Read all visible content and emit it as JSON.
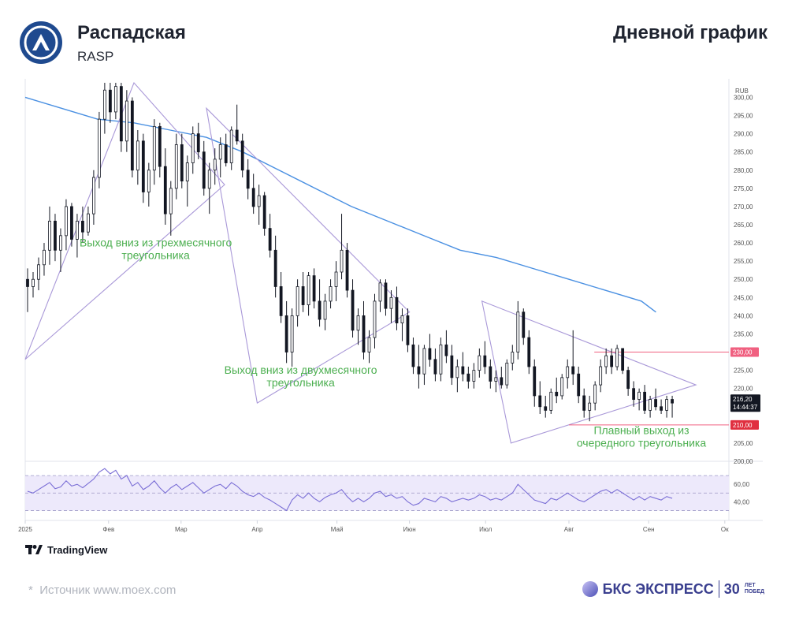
{
  "header": {
    "title": "Распадская",
    "ticker": "RASP",
    "period": "Дневной график"
  },
  "footer": {
    "source": "Источник www.moex.com",
    "source_star": "*",
    "tradingview": "TradingView",
    "brand_main": "БКС ЭКСПРЕСС",
    "brand_30": "30",
    "brand_small_1": "ЛЕТ",
    "brand_small_2": "ПОБЕД"
  },
  "colors": {
    "up": "#ffffff",
    "down": "#131722",
    "ma": "#4a90e2",
    "triangle": "#a998d8",
    "level": "#f06080",
    "annotation": "#4caf50",
    "rsi": "#7b6fd6",
    "rsi_band": "#ede9fb"
  },
  "chart_data": {
    "type": "candlestick",
    "currency": "RUB",
    "ylim": [
      200,
      304
    ],
    "yticks": [
      "300,00",
      "295,00",
      "290,00",
      "285,00",
      "280,00",
      "275,00",
      "270,00",
      "265,00",
      "260,00",
      "255,00",
      "250,00",
      "245,00",
      "240,00",
      "235,00",
      "230,00",
      "225,00",
      "220,00",
      "215,00",
      "210,00",
      "205,00",
      "200,00"
    ],
    "xticks": [
      {
        "label": "2025",
        "day": 0
      },
      {
        "label": "Фев",
        "day": 23
      },
      {
        "label": "Мар",
        "day": 43
      },
      {
        "label": "Апр",
        "day": 64
      },
      {
        "label": "Май",
        "day": 86
      },
      {
        "label": "Июн",
        "day": 106
      },
      {
        "label": "Июл",
        "day": 127
      },
      {
        "label": "Авг",
        "day": 150
      },
      {
        "label": "Сен",
        "day": 172
      },
      {
        "label": "Ок",
        "day": 193
      }
    ],
    "last_price": "216,20",
    "last_time": "14:44:37",
    "levels": [
      {
        "label": "230,00",
        "value": 230
      },
      {
        "label": "210,00",
        "value": 210
      }
    ],
    "ma_points": [
      [
        0,
        300
      ],
      [
        10,
        297
      ],
      [
        20,
        294
      ],
      [
        30,
        293
      ],
      [
        40,
        291
      ],
      [
        50,
        289
      ],
      [
        60,
        285
      ],
      [
        70,
        280
      ],
      [
        80,
        275
      ],
      [
        90,
        270
      ],
      [
        100,
        266
      ],
      [
        110,
        262
      ],
      [
        120,
        258
      ],
      [
        130,
        256
      ],
      [
        140,
        253
      ],
      [
        150,
        250
      ],
      [
        160,
        247
      ],
      [
        170,
        244
      ],
      [
        174,
        241
      ]
    ],
    "triangles": [
      [
        [
          0,
          228
        ],
        [
          55,
          276
        ],
        [
          30,
          304
        ]
      ],
      [
        [
          50,
          297
        ],
        [
          106,
          241
        ],
        [
          64,
          216
        ]
      ],
      [
        [
          126,
          244
        ],
        [
          185,
          221
        ],
        [
          134,
          205
        ]
      ]
    ],
    "annotations": [
      {
        "lines": [
          "Выход вниз из трехмесячного",
          "треугольника"
        ],
        "day": 36,
        "value": 259
      },
      {
        "lines": [
          "Выход вниз из двухмесячного",
          "треугольника"
        ],
        "day": 76,
        "value": 224
      },
      {
        "lines": [
          "Плавный выход из",
          "очередного треугольника"
        ],
        "day": 170,
        "value": 207.5
      }
    ],
    "candles": [
      {
        "o": 250,
        "h": 253,
        "l": 241,
        "c": 248
      },
      {
        "o": 248,
        "h": 252,
        "l": 245,
        "c": 250
      },
      {
        "o": 250,
        "h": 256,
        "l": 247,
        "c": 254
      },
      {
        "o": 254,
        "h": 260,
        "l": 251,
        "c": 258
      },
      {
        "o": 258,
        "h": 270,
        "l": 254,
        "c": 266
      },
      {
        "o": 266,
        "h": 268,
        "l": 255,
        "c": 258
      },
      {
        "o": 258,
        "h": 264,
        "l": 252,
        "c": 262
      },
      {
        "o": 262,
        "h": 272,
        "l": 258,
        "c": 270
      },
      {
        "o": 270,
        "h": 271,
        "l": 259,
        "c": 261
      },
      {
        "o": 261,
        "h": 268,
        "l": 256,
        "c": 266
      },
      {
        "o": 266,
        "h": 270,
        "l": 260,
        "c": 263
      },
      {
        "o": 263,
        "h": 270,
        "l": 262,
        "c": 268
      },
      {
        "o": 268,
        "h": 280,
        "l": 265,
        "c": 278
      },
      {
        "o": 278,
        "h": 296,
        "l": 275,
        "c": 294
      },
      {
        "o": 294,
        "h": 304,
        "l": 290,
        "c": 302
      },
      {
        "o": 302,
        "h": 304,
        "l": 293,
        "c": 296
      },
      {
        "o": 296,
        "h": 304,
        "l": 294,
        "c": 303
      },
      {
        "o": 303,
        "h": 304,
        "l": 285,
        "c": 288
      },
      {
        "o": 288,
        "h": 302,
        "l": 285,
        "c": 299
      },
      {
        "o": 299,
        "h": 300,
        "l": 278,
        "c": 280
      },
      {
        "o": 280,
        "h": 291,
        "l": 276,
        "c": 288
      },
      {
        "o": 288,
        "h": 290,
        "l": 271,
        "c": 274
      },
      {
        "o": 274,
        "h": 282,
        "l": 270,
        "c": 280
      },
      {
        "o": 280,
        "h": 294,
        "l": 276,
        "c": 292
      },
      {
        "o": 292,
        "h": 293,
        "l": 278,
        "c": 281
      },
      {
        "o": 281,
        "h": 286,
        "l": 265,
        "c": 268
      },
      {
        "o": 268,
        "h": 277,
        "l": 262,
        "c": 275
      },
      {
        "o": 275,
        "h": 290,
        "l": 272,
        "c": 287
      },
      {
        "o": 287,
        "h": 290,
        "l": 275,
        "c": 277
      },
      {
        "o": 277,
        "h": 284,
        "l": 270,
        "c": 282
      },
      {
        "o": 282,
        "h": 292,
        "l": 279,
        "c": 290
      },
      {
        "o": 290,
        "h": 293,
        "l": 283,
        "c": 285
      },
      {
        "o": 285,
        "h": 288,
        "l": 273,
        "c": 275
      },
      {
        "o": 275,
        "h": 282,
        "l": 268,
        "c": 280
      },
      {
        "o": 280,
        "h": 286,
        "l": 276,
        "c": 283
      },
      {
        "o": 283,
        "h": 289,
        "l": 278,
        "c": 287
      },
      {
        "o": 287,
        "h": 290,
        "l": 281,
        "c": 282
      },
      {
        "o": 282,
        "h": 292,
        "l": 280,
        "c": 291
      },
      {
        "o": 291,
        "h": 298,
        "l": 287,
        "c": 288
      },
      {
        "o": 288,
        "h": 290,
        "l": 278,
        "c": 280
      },
      {
        "o": 280,
        "h": 283,
        "l": 272,
        "c": 275
      },
      {
        "o": 275,
        "h": 279,
        "l": 268,
        "c": 270
      },
      {
        "o": 270,
        "h": 276,
        "l": 265,
        "c": 273
      },
      {
        "o": 273,
        "h": 274,
        "l": 262,
        "c": 264
      },
      {
        "o": 264,
        "h": 268,
        "l": 256,
        "c": 258
      },
      {
        "o": 258,
        "h": 262,
        "l": 245,
        "c": 248
      },
      {
        "o": 248,
        "h": 252,
        "l": 238,
        "c": 240
      },
      {
        "o": 240,
        "h": 244,
        "l": 227,
        "c": 230
      },
      {
        "o": 230,
        "h": 242,
        "l": 226,
        "c": 240
      },
      {
        "o": 240,
        "h": 250,
        "l": 237,
        "c": 248
      },
      {
        "o": 248,
        "h": 252,
        "l": 241,
        "c": 243
      },
      {
        "o": 243,
        "h": 252,
        "l": 240,
        "c": 251
      },
      {
        "o": 251,
        "h": 253,
        "l": 242,
        "c": 244
      },
      {
        "o": 244,
        "h": 250,
        "l": 237,
        "c": 239
      },
      {
        "o": 239,
        "h": 246,
        "l": 236,
        "c": 244
      },
      {
        "o": 244,
        "h": 250,
        "l": 242,
        "c": 248
      },
      {
        "o": 248,
        "h": 255,
        "l": 244,
        "c": 252
      },
      {
        "o": 252,
        "h": 268,
        "l": 250,
        "c": 258
      },
      {
        "o": 258,
        "h": 260,
        "l": 245,
        "c": 247
      },
      {
        "o": 247,
        "h": 250,
        "l": 234,
        "c": 236
      },
      {
        "o": 236,
        "h": 242,
        "l": 232,
        "c": 240
      },
      {
        "o": 240,
        "h": 244,
        "l": 228,
        "c": 230
      },
      {
        "o": 230,
        "h": 236,
        "l": 227,
        "c": 234
      },
      {
        "o": 234,
        "h": 246,
        "l": 231,
        "c": 244
      },
      {
        "o": 244,
        "h": 250,
        "l": 241,
        "c": 249
      },
      {
        "o": 249,
        "h": 250,
        "l": 240,
        "c": 242
      },
      {
        "o": 242,
        "h": 247,
        "l": 238,
        "c": 245
      },
      {
        "o": 245,
        "h": 248,
        "l": 236,
        "c": 238
      },
      {
        "o": 238,
        "h": 242,
        "l": 233,
        "c": 240
      },
      {
        "o": 240,
        "h": 242,
        "l": 230,
        "c": 232
      },
      {
        "o": 232,
        "h": 234,
        "l": 224,
        "c": 226
      },
      {
        "o": 226,
        "h": 232,
        "l": 220,
        "c": 224
      },
      {
        "o": 224,
        "h": 232,
        "l": 221,
        "c": 231
      },
      {
        "o": 231,
        "h": 235,
        "l": 226,
        "c": 228
      },
      {
        "o": 228,
        "h": 231,
        "l": 222,
        "c": 224
      },
      {
        "o": 224,
        "h": 234,
        "l": 222,
        "c": 232
      },
      {
        "o": 232,
        "h": 236,
        "l": 227,
        "c": 229
      },
      {
        "o": 229,
        "h": 232,
        "l": 221,
        "c": 223
      },
      {
        "o": 223,
        "h": 228,
        "l": 219,
        "c": 226
      },
      {
        "o": 226,
        "h": 230,
        "l": 222,
        "c": 224
      },
      {
        "o": 224,
        "h": 226,
        "l": 220,
        "c": 222
      },
      {
        "o": 222,
        "h": 227,
        "l": 220,
        "c": 225
      },
      {
        "o": 225,
        "h": 231,
        "l": 223,
        "c": 229
      },
      {
        "o": 229,
        "h": 233,
        "l": 224,
        "c": 226
      },
      {
        "o": 226,
        "h": 228,
        "l": 220,
        "c": 222
      },
      {
        "o": 222,
        "h": 225,
        "l": 219,
        "c": 223
      },
      {
        "o": 223,
        "h": 226,
        "l": 220,
        "c": 221
      },
      {
        "o": 221,
        "h": 228,
        "l": 220,
        "c": 227
      },
      {
        "o": 227,
        "h": 232,
        "l": 225,
        "c": 230
      },
      {
        "o": 230,
        "h": 244,
        "l": 228,
        "c": 241
      },
      {
        "o": 241,
        "h": 242,
        "l": 232,
        "c": 234
      },
      {
        "o": 234,
        "h": 236,
        "l": 224,
        "c": 226
      },
      {
        "o": 226,
        "h": 228,
        "l": 215,
        "c": 218
      },
      {
        "o": 218,
        "h": 222,
        "l": 213,
        "c": 215
      },
      {
        "o": 215,
        "h": 218,
        "l": 212,
        "c": 214
      },
      {
        "o": 214,
        "h": 220,
        "l": 213,
        "c": 219
      },
      {
        "o": 219,
        "h": 223,
        "l": 216,
        "c": 218
      },
      {
        "o": 218,
        "h": 224,
        "l": 217,
        "c": 223
      },
      {
        "o": 223,
        "h": 228,
        "l": 220,
        "c": 226
      },
      {
        "o": 226,
        "h": 236,
        "l": 221,
        "c": 224
      },
      {
        "o": 224,
        "h": 226,
        "l": 216,
        "c": 218
      },
      {
        "o": 218,
        "h": 220,
        "l": 212,
        "c": 214
      },
      {
        "o": 214,
        "h": 218,
        "l": 211,
        "c": 216
      },
      {
        "o": 216,
        "h": 222,
        "l": 214,
        "c": 221
      },
      {
        "o": 221,
        "h": 228,
        "l": 219,
        "c": 226
      },
      {
        "o": 226,
        "h": 231,
        "l": 224,
        "c": 229
      },
      {
        "o": 229,
        "h": 231,
        "l": 224,
        "c": 226
      },
      {
        "o": 226,
        "h": 232,
        "l": 225,
        "c": 231
      },
      {
        "o": 231,
        "h": 231,
        "l": 224,
        "c": 225
      },
      {
        "o": 225,
        "h": 226,
        "l": 218,
        "c": 220
      },
      {
        "o": 220,
        "h": 222,
        "l": 215,
        "c": 217
      },
      {
        "o": 217,
        "h": 220,
        "l": 214,
        "c": 219
      },
      {
        "o": 219,
        "h": 221,
        "l": 213,
        "c": 214
      },
      {
        "o": 214,
        "h": 218,
        "l": 212,
        "c": 217
      },
      {
        "o": 217,
        "h": 220,
        "l": 214,
        "c": 215
      },
      {
        "o": 215,
        "h": 217,
        "l": 213,
        "c": 214
      },
      {
        "o": 214,
        "h": 218,
        "l": 212,
        "c": 217
      },
      {
        "o": 217,
        "h": 218,
        "l": 212,
        "c": 216
      }
    ],
    "rsi": {
      "ylim": [
        25,
        80
      ],
      "yticks": [
        "60,00",
        "40,00"
      ],
      "band": [
        30,
        70
      ],
      "values": [
        52,
        50,
        54,
        58,
        62,
        55,
        57,
        64,
        58,
        60,
        56,
        61,
        66,
        74,
        78,
        72,
        76,
        66,
        70,
        58,
        62,
        54,
        58,
        64,
        56,
        50,
        56,
        60,
        54,
        58,
        62,
        56,
        50,
        54,
        58,
        60,
        55,
        62,
        58,
        52,
        48,
        46,
        50,
        45,
        42,
        38,
        34,
        30,
        42,
        48,
        44,
        50,
        44,
        40,
        45,
        48,
        50,
        54,
        46,
        40,
        44,
        40,
        44,
        50,
        52,
        46,
        48,
        44,
        46,
        40,
        36,
        38,
        44,
        42,
        40,
        46,
        44,
        40,
        42,
        44,
        42,
        44,
        48,
        46,
        42,
        44,
        42,
        46,
        50,
        60,
        54,
        48,
        42,
        40,
        38,
        44,
        42,
        46,
        50,
        46,
        42,
        40,
        44,
        48,
        52,
        54,
        50,
        54,
        50,
        46,
        42,
        46,
        42,
        46,
        44,
        42,
        46,
        44
      ]
    }
  }
}
